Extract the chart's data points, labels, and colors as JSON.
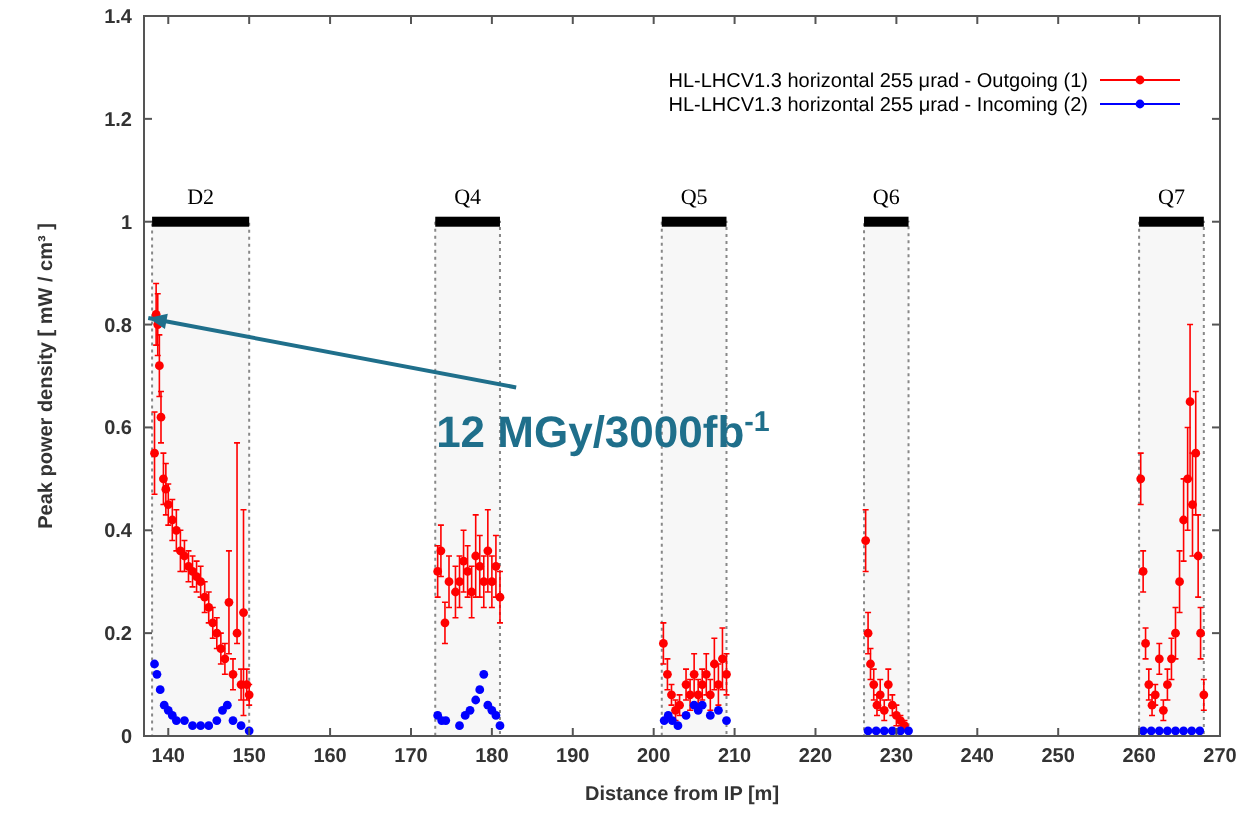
{
  "chart_data": {
    "type": "scatter",
    "xlabel": "Distance from IP [m]",
    "ylabel": "Peak power density [ mW / cm³ ]",
    "xlim": [
      137,
      270
    ],
    "xticks": [
      140,
      150,
      160,
      170,
      180,
      190,
      200,
      210,
      220,
      230,
      240,
      250,
      260,
      270
    ],
    "ylim": [
      0,
      1.4
    ],
    "yticks": [
      0,
      0.2,
      0.4,
      0.6,
      0.8,
      1,
      1.2,
      1.4
    ],
    "legend": "top right",
    "marker": "circle",
    "grid": false,
    "bands": [
      {
        "axis": "x",
        "from": 138,
        "to": 150,
        "label": "D2",
        "color": "#000000"
      },
      {
        "axis": "x",
        "from": 173,
        "to": 181,
        "label": "Q4",
        "color": "#000000"
      },
      {
        "axis": "x",
        "from": 201,
        "to": 209,
        "label": "Q5",
        "color": "#000000"
      },
      {
        "axis": "x",
        "from": 226,
        "to": 231.5,
        "label": "Q6",
        "color": "#000000"
      },
      {
        "axis": "x",
        "from": 260,
        "to": 268,
        "label": "Q7",
        "color": "#000000"
      }
    ],
    "annotations": [
      {
        "text": "12 MGy/3000fb$^{-1}$",
        "x": 138.5,
        "y": 0.81
      }
    ],
    "series": [
      {
        "name": "HL-LHCV1.3 horizontal 255 μrad - Outgoing (1)",
        "color": "#ff0000",
        "x": [
          138.3,
          138.5,
          138.7,
          138.9,
          139.1,
          139.4,
          139.7,
          140,
          140.5,
          141,
          141.5,
          142,
          142.5,
          143,
          143.5,
          144,
          144.5,
          145,
          145.5,
          146,
          146.5,
          147,
          147.5,
          148,
          148.5,
          149,
          149.3,
          149.7,
          150,
          173.3,
          173.7,
          174.2,
          174.7,
          175.5,
          176,
          176.5,
          177,
          177.5,
          178,
          178.5,
          179,
          179.5,
          180,
          180.5,
          181,
          201.2,
          201.7,
          202.2,
          202.7,
          203.2,
          204,
          204.5,
          205,
          205.5,
          206,
          206.5,
          207,
          207.5,
          208,
          208.5,
          209,
          226.2,
          226.5,
          226.8,
          227.2,
          227.6,
          228,
          228.5,
          229,
          229.5,
          230,
          230.5,
          231,
          260.2,
          260.5,
          260.8,
          261.2,
          261.6,
          262,
          262.5,
          263,
          263.5,
          264,
          264.5,
          265,
          265.5,
          266,
          266.3,
          266.6,
          267,
          267.3,
          267.6,
          268
        ],
        "values": [
          0.55,
          0.82,
          0.8,
          0.72,
          0.62,
          0.5,
          0.48,
          0.45,
          0.42,
          0.4,
          0.36,
          0.35,
          0.33,
          0.32,
          0.31,
          0.3,
          0.27,
          0.25,
          0.22,
          0.2,
          0.17,
          0.15,
          0.26,
          0.12,
          0.2,
          0.1,
          0.24,
          0.1,
          0.08,
          0.32,
          0.36,
          0.22,
          0.3,
          0.28,
          0.3,
          0.34,
          0.32,
          0.28,
          0.35,
          0.33,
          0.3,
          0.36,
          0.3,
          0.33,
          0.27,
          0.18,
          0.12,
          0.08,
          0.05,
          0.06,
          0.1,
          0.08,
          0.12,
          0.08,
          0.1,
          0.12,
          0.08,
          0.14,
          0.1,
          0.15,
          0.12,
          0.38,
          0.2,
          0.14,
          0.1,
          0.06,
          0.08,
          0.05,
          0.1,
          0.06,
          0.04,
          0.03,
          0.02,
          0.5,
          0.32,
          0.18,
          0.1,
          0.06,
          0.08,
          0.15,
          0.05,
          0.1,
          0.15,
          0.2,
          0.3,
          0.42,
          0.5,
          0.65,
          0.45,
          0.55,
          0.35,
          0.2,
          0.08
        ],
        "errors": [
          0.08,
          0.06,
          0.06,
          0.06,
          0.05,
          0.05,
          0.05,
          0.04,
          0.04,
          0.04,
          0.04,
          0.03,
          0.03,
          0.03,
          0.03,
          0.03,
          0.03,
          0.03,
          0.03,
          0.03,
          0.03,
          0.03,
          0.1,
          0.03,
          [
            0.18,
            0.57
          ],
          0.03,
          0.2,
          0.03,
          0.02,
          0.05,
          0.05,
          0.04,
          0.05,
          0.05,
          0.05,
          0.06,
          0.05,
          0.05,
          0.08,
          0.06,
          0.05,
          0.08,
          0.05,
          0.06,
          0.05,
          0.04,
          0.03,
          0.02,
          0.02,
          0.02,
          0.03,
          0.03,
          0.04,
          0.03,
          0.03,
          0.04,
          0.03,
          0.05,
          0.04,
          0.06,
          0.04,
          0.06,
          0.04,
          0.03,
          0.03,
          0.02,
          0.03,
          0.02,
          0.03,
          0.02,
          0.02,
          0.01,
          0.01,
          0.05,
          0.04,
          0.03,
          0.03,
          0.02,
          0.02,
          0.03,
          0.02,
          0.03,
          0.04,
          0.05,
          0.06,
          0.08,
          0.1,
          0.15,
          0.1,
          0.12,
          0.08,
          0.05,
          0.03
        ]
      },
      {
        "name": "HL-LHCV1.3 horizontal 255 μrad - Incoming (2)",
        "color": "#0000ff",
        "x": [
          138.3,
          138.6,
          139,
          139.5,
          140,
          140.5,
          141,
          142,
          143,
          144,
          145,
          146,
          146.7,
          147.3,
          148,
          149,
          150,
          173.3,
          173.8,
          174.3,
          176,
          176.7,
          177.3,
          178,
          178.5,
          179,
          179.5,
          180,
          180.5,
          181,
          201.3,
          201.8,
          202.3,
          203,
          204,
          205,
          205.5,
          206,
          207,
          208,
          209,
          226.5,
          227.5,
          228.5,
          229.5,
          230.5,
          231.5,
          260.5,
          261.5,
          262.5,
          263.5,
          264.5,
          265.5,
          266.5,
          267.5
        ],
        "values": [
          0.14,
          0.12,
          0.09,
          0.06,
          0.05,
          0.04,
          0.03,
          0.03,
          0.02,
          0.02,
          0.02,
          0.03,
          0.05,
          0.06,
          0.03,
          0.02,
          0.01,
          0.04,
          0.03,
          0.03,
          0.02,
          0.04,
          0.05,
          0.07,
          0.09,
          0.12,
          0.06,
          0.05,
          0.04,
          0.02,
          0.03,
          0.04,
          0.03,
          0.02,
          0.04,
          0.06,
          0.05,
          0.06,
          0.04,
          0.05,
          0.03,
          0.01,
          0.01,
          0.01,
          0.01,
          0.01,
          0.01,
          0.01,
          0.01,
          0.01,
          0.01,
          0.01,
          0.01,
          0.01,
          0.01
        ]
      }
    ]
  }
}
